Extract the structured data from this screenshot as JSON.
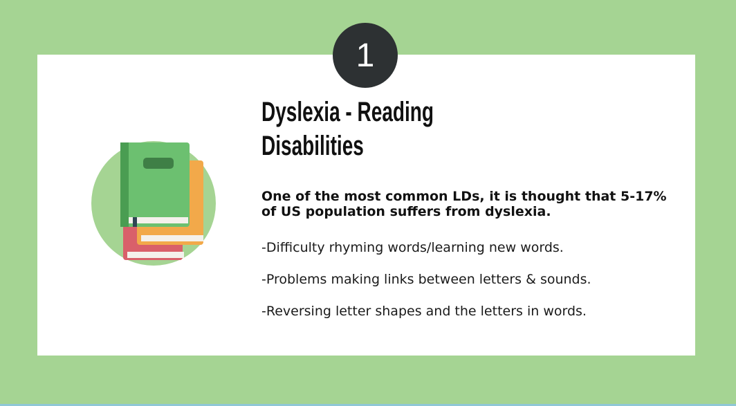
{
  "badge": {
    "number": "1"
  },
  "illustration": {
    "icon": "books-stack-icon",
    "circle_color": "#a5d493"
  },
  "title": {
    "line1": "Dyslexia - Reading",
    "line2": "Disabilities"
  },
  "intro": {
    "text": "One of the most common LDs, it is thought that 5-17% of US population suffers from dyslexia."
  },
  "points": [
    {
      "text": "-Difficulty rhyming words/learning new words."
    },
    {
      "text": "-Problems making links between letters & sounds."
    },
    {
      "text": "-Reversing letter shapes and the letters in words."
    }
  ],
  "colors": {
    "background": "#a5d493",
    "card": "#ffffff",
    "badge": "#2d3133"
  }
}
